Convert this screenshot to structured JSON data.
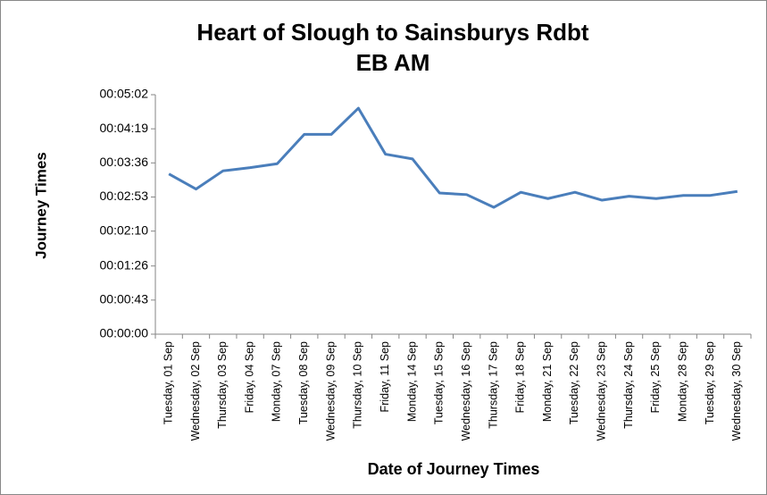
{
  "chart_data": {
    "type": "line",
    "title": [
      "Heart of Slough to Sainsburys Rdbt",
      "EB AM"
    ],
    "x_label": "Date of Journey Times",
    "y_label": "Journey Times",
    "categories": [
      "Tuesday, 01 Sep",
      "Wednesday, 02 Sep",
      "Thursday, 03 Sep",
      "Friday, 04 Sep",
      "Monday, 07 Sep",
      "Tuesday, 08 Sep",
      "Wednesday, 09 Sep",
      "Thursday, 10 Sep",
      "Friday, 11 Sep",
      "Monday, 14 Sep",
      "Tuesday, 15 Sep",
      "Wednesday, 16 Sep",
      "Thursday, 17 Sep",
      "Friday, 18 Sep",
      "Monday, 21 Sep",
      "Tuesday, 22 Sep",
      "Wednesday, 23 Sep",
      "Thursday, 24 Sep",
      "Friday, 25 Sep",
      "Monday, 28 Sep",
      "Tuesday, 29 Sep",
      "Wednesday, 30 Sep"
    ],
    "values": [
      202,
      183,
      206,
      210,
      215,
      252,
      252,
      285,
      227,
      221,
      178,
      176,
      160,
      179,
      171,
      179,
      169,
      174,
      171,
      175,
      175,
      180
    ],
    "color": "#4a7ebb",
    "ylim": [
      0,
      302
    ],
    "yticks": [
      {
        "value": 0,
        "label": "00:00:00"
      },
      {
        "value": 43,
        "label": "00:00:43"
      },
      {
        "value": 86,
        "label": "00:01:26"
      },
      {
        "value": 130,
        "label": "00:02:10"
      },
      {
        "value": 173,
        "label": "00:02:53"
      },
      {
        "value": 216,
        "label": "00:03:36"
      },
      {
        "value": 259,
        "label": "00:04:19"
      },
      {
        "value": 302,
        "label": "00:05:02"
      }
    ],
    "grid": false
  }
}
